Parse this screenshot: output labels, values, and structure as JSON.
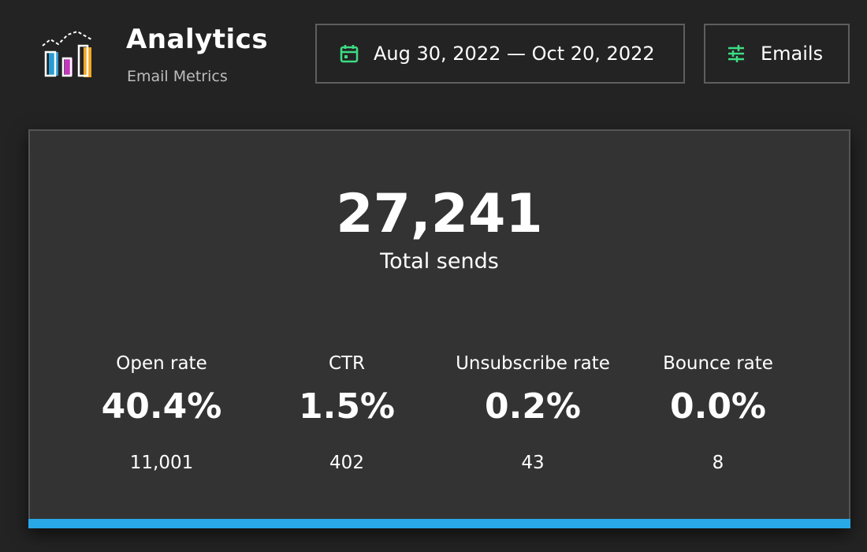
{
  "header": {
    "title": "Analytics",
    "subtitle": "Email Metrics",
    "date_range": "Aug 30, 2022 — Oct 20, 2022",
    "filter": "Emails"
  },
  "summary": {
    "value": "27,241",
    "label": "Total sends"
  },
  "metrics": [
    {
      "label": "Open rate",
      "value": "40.4%",
      "count": "11,001"
    },
    {
      "label": "CTR",
      "value": "1.5%",
      "count": "402"
    },
    {
      "label": "Unsubscribe rate",
      "value": "0.2%",
      "count": "43"
    },
    {
      "label": "Bounce rate",
      "value": "0.0%",
      "count": "8"
    }
  ]
}
